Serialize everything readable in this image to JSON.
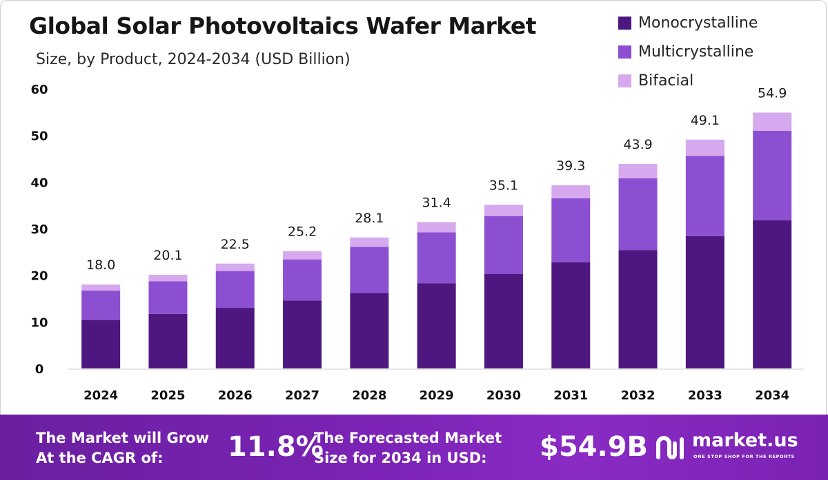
{
  "chart_data": {
    "type": "bar",
    "stacked": true,
    "title": "Global Solar Photovoltaics Wafer Market",
    "subtitle": "Size, by Product, 2024-2034 (USD Billion)",
    "categories": [
      "2024",
      "2025",
      "2026",
      "2027",
      "2028",
      "2029",
      "2030",
      "2031",
      "2032",
      "2033",
      "2034"
    ],
    "series": [
      {
        "name": "Monocrystalline",
        "color": "#4e1780",
        "values": [
          10.4,
          11.7,
          13.0,
          14.6,
          16.2,
          18.3,
          20.3,
          22.8,
          25.4,
          28.4,
          31.8
        ]
      },
      {
        "name": "Multicrystalline",
        "color": "#8c4fd1",
        "values": [
          6.3,
          7.0,
          7.9,
          8.8,
          9.9,
          10.9,
          12.4,
          13.7,
          15.4,
          17.2,
          19.2
        ]
      },
      {
        "name": "Bifacial",
        "color": "#d6a9ee",
        "values": [
          1.3,
          1.4,
          1.6,
          1.8,
          2.0,
          2.2,
          2.4,
          2.8,
          3.1,
          3.5,
          3.9
        ]
      }
    ],
    "totals": [
      "18.0",
      "20.1",
      "22.5",
      "25.2",
      "28.1",
      "31.4",
      "35.1",
      "39.3",
      "43.9",
      "49.1",
      "54.9"
    ],
    "yticks": [
      0,
      10,
      20,
      30,
      40,
      50,
      60
    ],
    "ylim": [
      0,
      60
    ],
    "xlabel": "",
    "ylabel": "",
    "grid": false,
    "legend_position": "top-right"
  },
  "footer": {
    "cagr_text_line1": "The Market will Grow",
    "cagr_text_line2": "At the CAGR of:",
    "cagr_value": "11.8%",
    "forecast_text_line1": "The Forecasted Market",
    "forecast_text_line2": "Size for 2034 in USD:",
    "forecast_value": "$54.9B",
    "brand_name": "market.us",
    "brand_tagline": "ONE STOP SHOP FOR THE REPORTS",
    "brand_icon": "market-us-logo-icon"
  }
}
